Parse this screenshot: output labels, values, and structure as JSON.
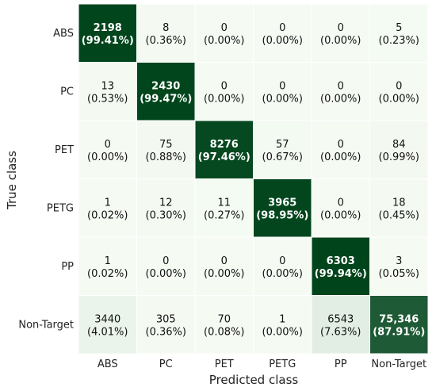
{
  "chart_data": {
    "type": "heatmap",
    "xlabel": "Predicted class",
    "ylabel": "True class",
    "x_categories": [
      "ABS",
      "PC",
      "PET",
      "PETG",
      "PP",
      "Non-Target"
    ],
    "y_categories": [
      "ABS",
      "PC",
      "PET",
      "PETG",
      "PP",
      "Non-Target"
    ],
    "counts": [
      [
        "2198",
        "8",
        "0",
        "0",
        "0",
        "5"
      ],
      [
        "13",
        "2430",
        "0",
        "0",
        "0",
        "0"
      ],
      [
        "0",
        "75",
        "8276",
        "57",
        "0",
        "84"
      ],
      [
        "1",
        "12",
        "11",
        "3965",
        "0",
        "18"
      ],
      [
        "1",
        "0",
        "0",
        "0",
        "6303",
        "3"
      ],
      [
        "3440",
        "305",
        "70",
        "1",
        "6543",
        "75,346"
      ]
    ],
    "percentages": [
      [
        "(99.41%)",
        "(0.36%)",
        "(0.00%)",
        "(0.00%)",
        "(0.00%)",
        "(0.23%)"
      ],
      [
        "(0.53%)",
        "(99.47%)",
        "(0.00%)",
        "(0.00%)",
        "(0.00%)",
        "(0.00%)"
      ],
      [
        "(0.00%)",
        "(0.88%)",
        "(97.46%)",
        "(0.67%)",
        "(0.00%)",
        "(0.99%)"
      ],
      [
        "(0.02%)",
        "(0.30%)",
        "(0.27%)",
        "(98.95%)",
        "(0.00%)",
        "(0.45%)"
      ],
      [
        "(0.02%)",
        "(0.00%)",
        "(0.00%)",
        "(0.00%)",
        "(99.94%)",
        "(0.05%)"
      ],
      [
        "(4.01%)",
        "(0.36%)",
        "(0.08%)",
        "(0.00%)",
        "(7.63%)",
        "(87.91%)"
      ]
    ],
    "values": [
      [
        99.41,
        0.36,
        0.0,
        0.0,
        0.0,
        0.23
      ],
      [
        0.53,
        99.47,
        0.0,
        0.0,
        0.0,
        0.0
      ],
      [
        0.0,
        0.88,
        97.46,
        0.67,
        0.0,
        0.99
      ],
      [
        0.02,
        0.3,
        0.27,
        98.95,
        0.0,
        0.45
      ],
      [
        0.02,
        0.0,
        0.0,
        0.0,
        99.94,
        0.05
      ],
      [
        4.01,
        0.36,
        0.08,
        0.0,
        7.63,
        87.91
      ]
    ],
    "colormap": "greens",
    "colors": {
      "low": "#f5fbf3",
      "high": "#00441b",
      "text_dark": "#111111",
      "text_light": "#ffffff",
      "cell_border": "#ffffff"
    }
  }
}
